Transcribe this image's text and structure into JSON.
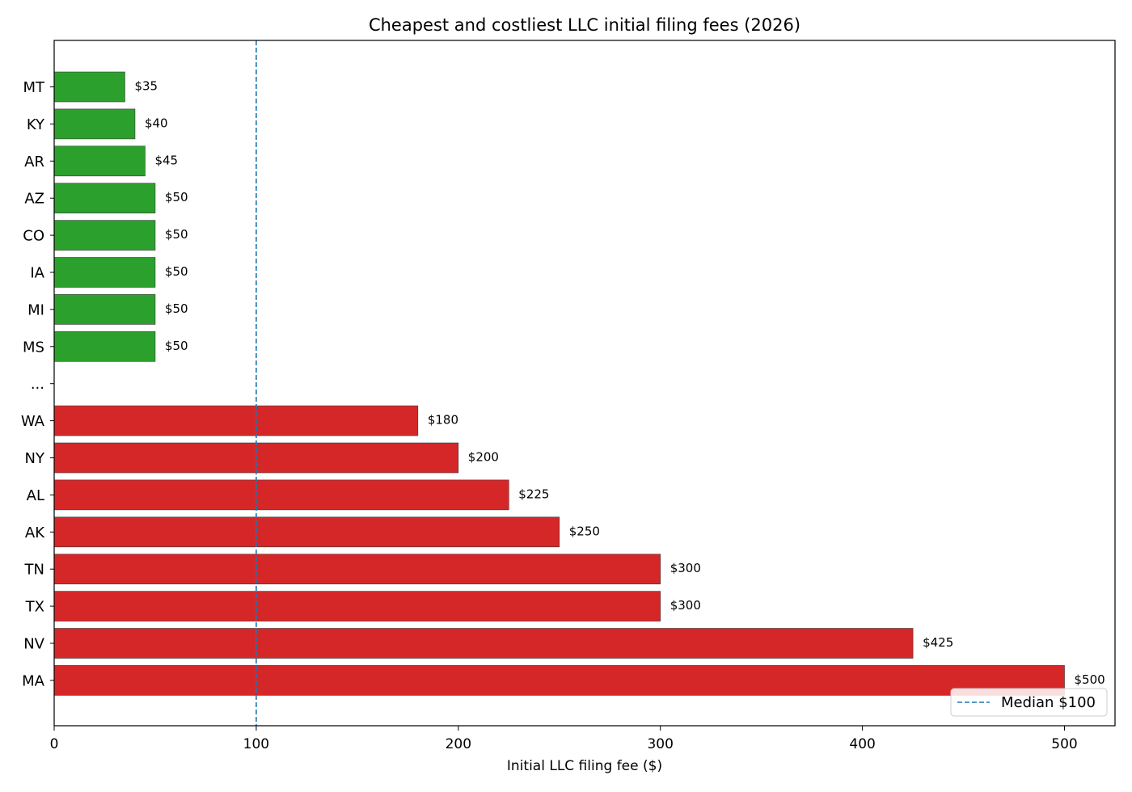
{
  "chart_data": {
    "type": "bar",
    "orientation": "horizontal",
    "title": "Cheapest and costliest LLC initial filing fees (2026)",
    "xlabel": "Initial LLC filing fee ($)",
    "ylabel": "",
    "xlim": [
      0,
      525
    ],
    "x_ticks": [
      0,
      100,
      200,
      300,
      400,
      500
    ],
    "x_tick_labels": [
      "0",
      "100",
      "200",
      "300",
      "400",
      "500"
    ],
    "grid": false,
    "legend_position": "bottom-right",
    "categories": [
      "MT",
      "KY",
      "AR",
      "AZ",
      "CO",
      "IA",
      "MI",
      "MS",
      "...",
      "WA",
      "NY",
      "AL",
      "AK",
      "TN",
      "TX",
      "NV",
      "MA"
    ],
    "values": [
      35,
      40,
      45,
      50,
      50,
      50,
      50,
      50,
      null,
      180,
      200,
      225,
      250,
      300,
      300,
      425,
      500
    ],
    "value_labels": [
      "$35",
      "$40",
      "$45",
      "$50",
      "$50",
      "$50",
      "$50",
      "$50",
      "",
      "$180",
      "$200",
      "$225",
      "$250",
      "$300",
      "$300",
      "$425",
      "$500"
    ],
    "groups": [
      "cheapest",
      "cheapest",
      "cheapest",
      "cheapest",
      "cheapest",
      "cheapest",
      "cheapest",
      "cheapest",
      "gap",
      "costliest",
      "costliest",
      "costliest",
      "costliest",
      "costliest",
      "costliest",
      "costliest",
      "costliest"
    ],
    "colors": {
      "cheapest": "#2ca02c",
      "costliest": "#d62728",
      "median_line": "#1f77b4"
    },
    "median": {
      "value": 100,
      "label": "Median $100"
    }
  }
}
